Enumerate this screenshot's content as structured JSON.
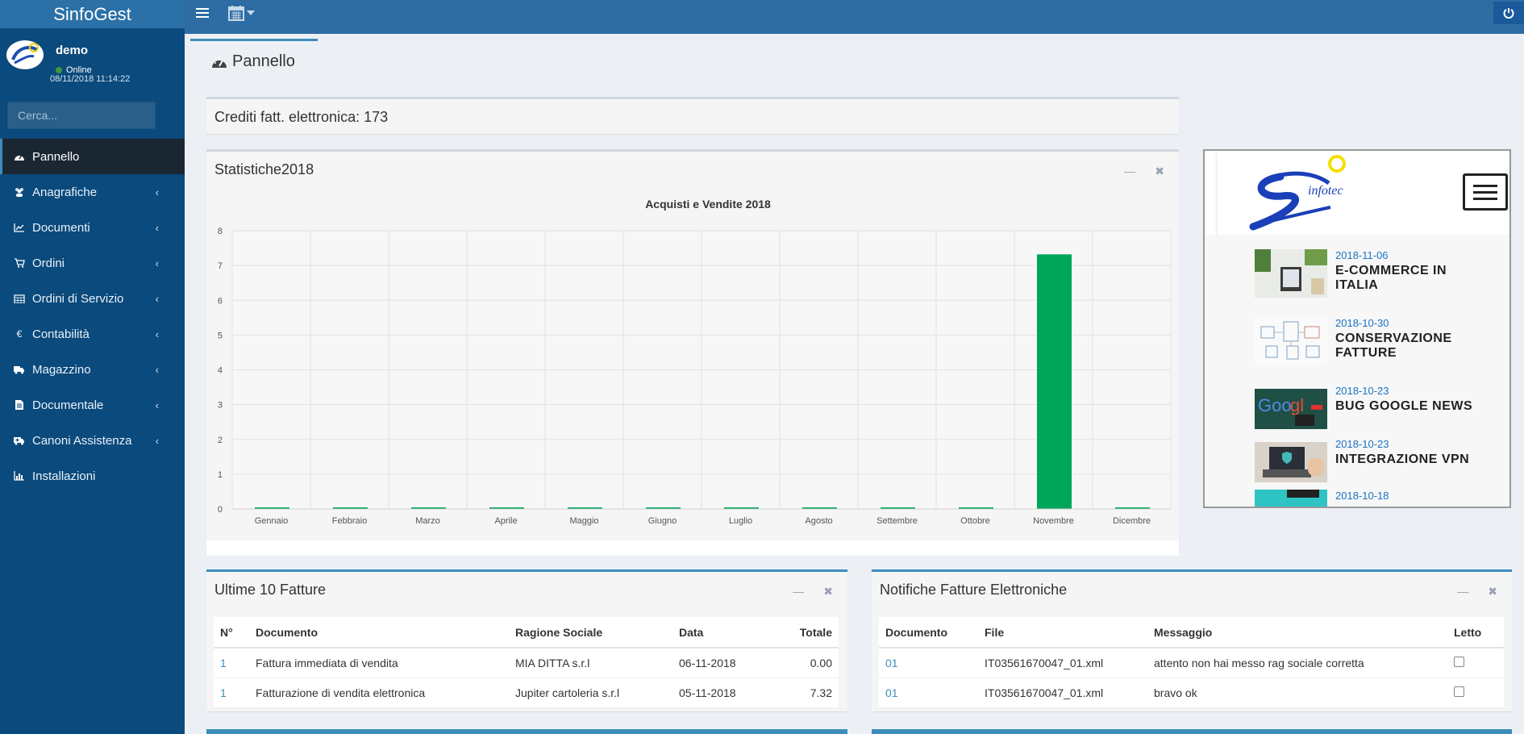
{
  "app": {
    "title": "SinfoGest"
  },
  "user": {
    "name": "demo",
    "status": "Online",
    "datetime": "08/11/2018 11:14:22"
  },
  "sidebar": {
    "search_placeholder": "Cerca...",
    "items": [
      {
        "label": "Pannello",
        "icon": "dashboard-icon",
        "active": true
      },
      {
        "label": "Anagrafiche",
        "icon": "users-icon"
      },
      {
        "label": "Documenti",
        "icon": "line-chart-icon"
      },
      {
        "label": "Ordini",
        "icon": "cart-icon"
      },
      {
        "label": "Ordini di Servizio",
        "icon": "calendar-icon"
      },
      {
        "label": "Contabilità",
        "icon": "euro-icon"
      },
      {
        "label": "Magazzino",
        "icon": "truck-icon"
      },
      {
        "label": "Documentale",
        "icon": "file-icon"
      },
      {
        "label": "Canoni Assistenza",
        "icon": "ambulance-icon"
      },
      {
        "label": "Installazioni",
        "icon": "bar-chart-icon"
      }
    ]
  },
  "page": {
    "title": "Pannello"
  },
  "credits": {
    "text": "Crediti fatt. elettronica: 173"
  },
  "stats": {
    "title": "Statistiche2018"
  },
  "chart_data": {
    "type": "bar",
    "title": "Acquisti e Vendite 2018",
    "categories": [
      "Gennaio",
      "Febbraio",
      "Marzo",
      "Aprile",
      "Maggio",
      "Giugno",
      "Luglio",
      "Agosto",
      "Settembre",
      "Ottobre",
      "Novembre",
      "Dicembre"
    ],
    "series": [
      {
        "color": "#00a65a",
        "values": [
          0,
          0,
          0,
          0,
          0,
          0,
          0,
          0,
          0,
          0,
          7.32,
          0
        ]
      }
    ],
    "ylim": [
      0,
      8
    ],
    "yticks": [
      0,
      1,
      2,
      3,
      4,
      5,
      6,
      7,
      8
    ],
    "grid": true
  },
  "news": {
    "brand": "infotec",
    "items": [
      {
        "date": "2018-11-06",
        "title": "E-COMMERCE IN ITALIA",
        "thumb": "ecommerce-thumb"
      },
      {
        "date": "2018-10-30",
        "title": "CONSERVAZIONE FATTURE",
        "thumb": "conservazione-thumb"
      },
      {
        "date": "2018-10-23",
        "title": "BUG GOOGLE NEWS",
        "thumb": "google-thumb"
      },
      {
        "date": "2018-10-23",
        "title": "INTEGRAZIONE VPN",
        "thumb": "vpn-thumb"
      },
      {
        "date": "2018-10-18",
        "title": "",
        "thumb": "partial-thumb"
      }
    ]
  },
  "fatture": {
    "title": "Ultime 10 Fatture",
    "headers": [
      "N°",
      "Documento",
      "Ragione Sociale",
      "Data",
      "Totale"
    ],
    "rows": [
      [
        "1",
        "Fattura immediata di vendita",
        "MIA DITTA s.r.l",
        "06-11-2018",
        "0.00"
      ],
      [
        "1",
        "Fatturazione di vendita elettronica",
        "Jupiter cartoleria s.r.l",
        "05-11-2018",
        "7.32"
      ]
    ]
  },
  "notifiche": {
    "title": "Notifiche Fatture Elettroniche",
    "headers": [
      "Documento",
      "File",
      "Messaggio",
      "Letto"
    ],
    "rows": [
      [
        "01",
        "IT03561670047_01.xml",
        "attento non hai messo rag sociale corretta"
      ],
      [
        "01",
        "IT03561670047_01.xml",
        "bravo ok"
      ]
    ]
  },
  "colors": {
    "sidebar": "#0b4a7c",
    "topbar": "#2e6da4",
    "accent": "#3c8dbc",
    "bar": "#00a65a"
  }
}
